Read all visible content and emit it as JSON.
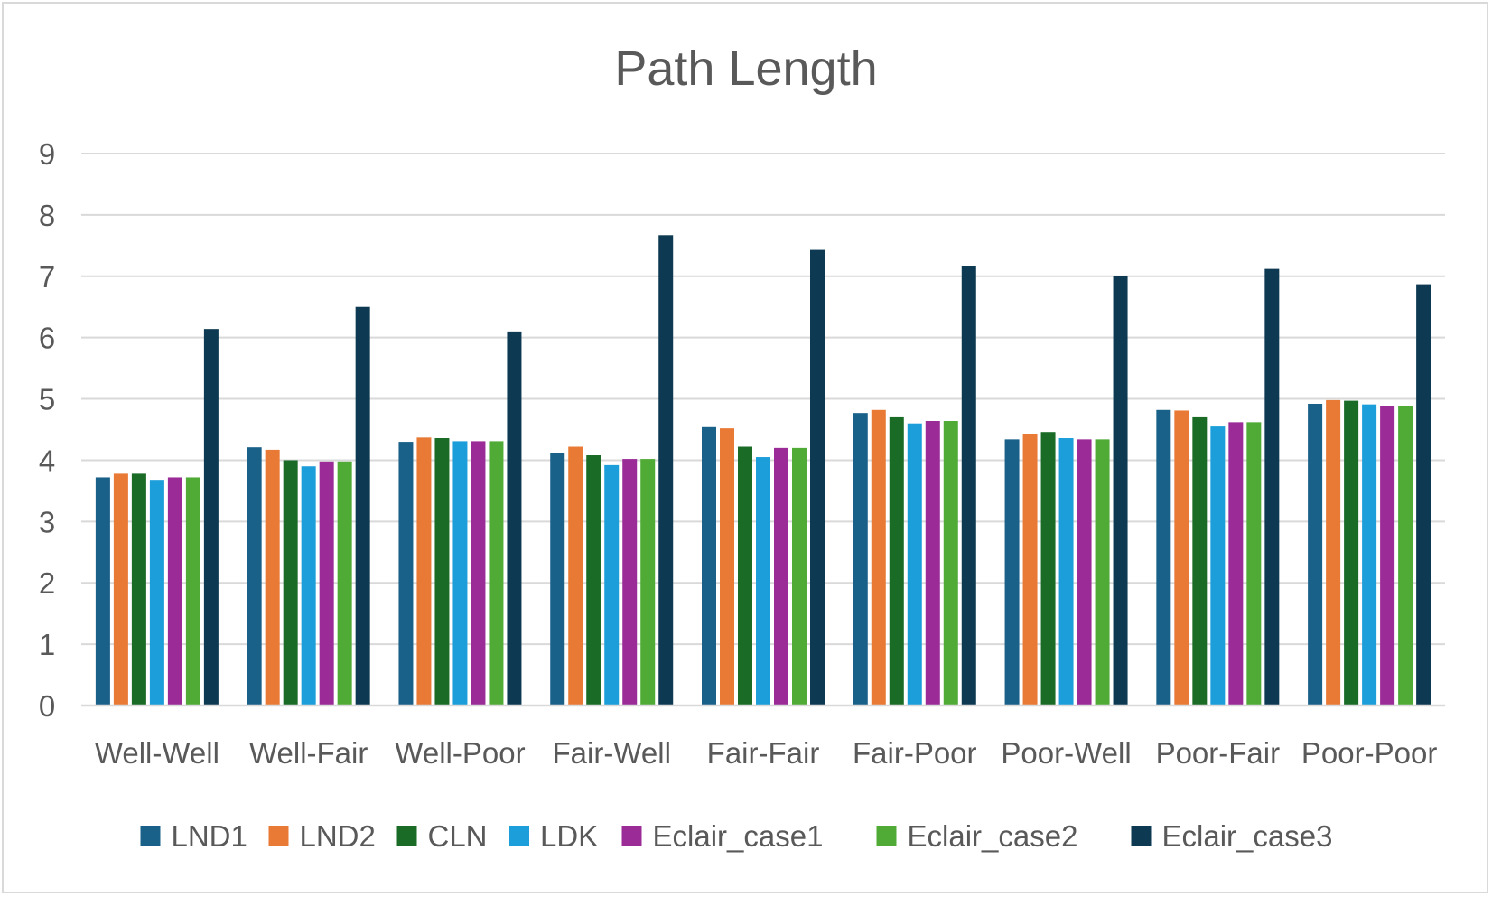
{
  "chart_data": {
    "type": "bar",
    "title": "Path Length",
    "xlabel": "",
    "ylabel": "",
    "ylim": [
      0,
      9
    ],
    "yticks": [
      "0",
      "1",
      "2",
      "3",
      "4",
      "5",
      "6",
      "7",
      "8",
      "9"
    ],
    "grid": true,
    "legend_position": "bottom",
    "categories": [
      "Well-Well",
      "Well-Fair",
      "Well-Poor",
      "Fair-Well",
      "Fair-Fair",
      "Fair-Poor",
      "Poor-Well",
      "Poor-Fair",
      "Poor-Poor"
    ],
    "series": [
      {
        "name": "LND1",
        "color": "#1a6189",
        "values": [
          3.72,
          4.21,
          4.3,
          4.12,
          4.54,
          4.77,
          4.34,
          4.82,
          4.92
        ]
      },
      {
        "name": "LND2",
        "color": "#e97a35",
        "values": [
          3.78,
          4.17,
          4.37,
          4.22,
          4.52,
          4.82,
          4.42,
          4.81,
          4.98
        ]
      },
      {
        "name": "CLN",
        "color": "#1a6b26",
        "values": [
          3.78,
          4.0,
          4.36,
          4.08,
          4.22,
          4.7,
          4.46,
          4.7,
          4.97
        ]
      },
      {
        "name": "LDK",
        "color": "#1b9ed9",
        "values": [
          3.68,
          3.9,
          4.31,
          3.92,
          4.05,
          4.6,
          4.36,
          4.55,
          4.91
        ]
      },
      {
        "name": "Eclair_case1",
        "color": "#9b2b97",
        "values": [
          3.72,
          3.98,
          4.31,
          4.02,
          4.2,
          4.64,
          4.34,
          4.62,
          4.89
        ]
      },
      {
        "name": "Eclair_case2",
        "color": "#4fab36",
        "values": [
          3.72,
          3.98,
          4.31,
          4.02,
          4.2,
          4.64,
          4.34,
          4.62,
          4.89
        ]
      },
      {
        "name": "Eclair_case3",
        "color": "#0d3a52",
        "values": [
          6.14,
          6.5,
          6.1,
          7.67,
          7.43,
          7.16,
          7.0,
          7.12,
          6.87
        ]
      }
    ]
  }
}
